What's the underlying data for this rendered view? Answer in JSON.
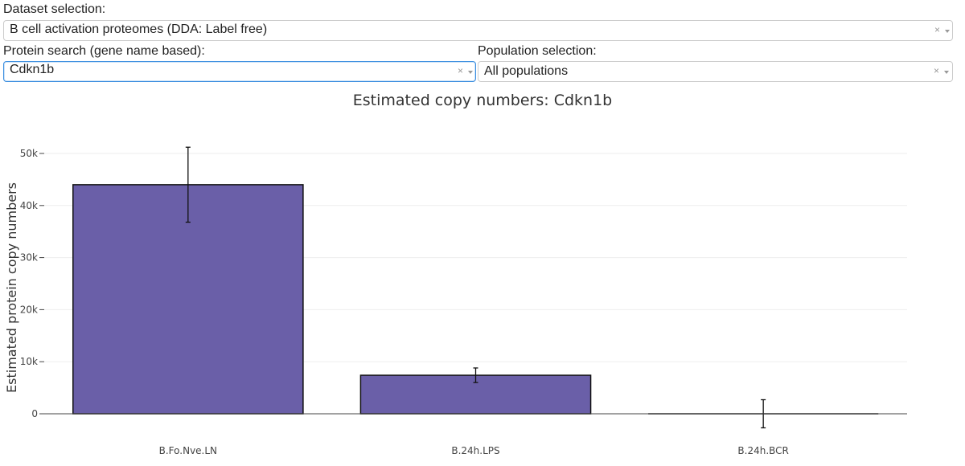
{
  "dataset": {
    "label": "Dataset selection:",
    "value": "B cell activation proteomes (DDA: Label free)",
    "clear_glyph": "×"
  },
  "protein": {
    "label": "Protein search (gene name based):",
    "value": "Cdkn1b",
    "clear_glyph": "×"
  },
  "population": {
    "label": "Population selection:",
    "value": "All populations",
    "clear_glyph": "×"
  },
  "icons": {
    "clear": "clear-icon",
    "dropdown": "chevron-down-icon"
  },
  "colors": {
    "bar_fill": "#6a5fa8",
    "bar_stroke": "#111111",
    "focus_border": "#3d8fe0"
  },
  "chart_data": {
    "type": "bar",
    "title": "Estimated copy numbers: Cdkn1b",
    "xlabel": "",
    "ylabel": "Estimated protein copy numbers",
    "categories": [
      "B.Fo.Nve.LN",
      "B.24h.LPS",
      "B.24h.BCR"
    ],
    "values": [
      44000,
      7400,
      0
    ],
    "error_low": [
      36800,
      6000,
      -2700
    ],
    "error_high": [
      51200,
      8800,
      2700
    ],
    "ylim": [
      0,
      50000
    ],
    "yticks": [
      0,
      10000,
      20000,
      30000,
      40000,
      50000
    ],
    "ytick_labels": [
      "0",
      "10k",
      "20k",
      "30k",
      "40k",
      "50k"
    ],
    "grid": true,
    "legend": "none"
  }
}
